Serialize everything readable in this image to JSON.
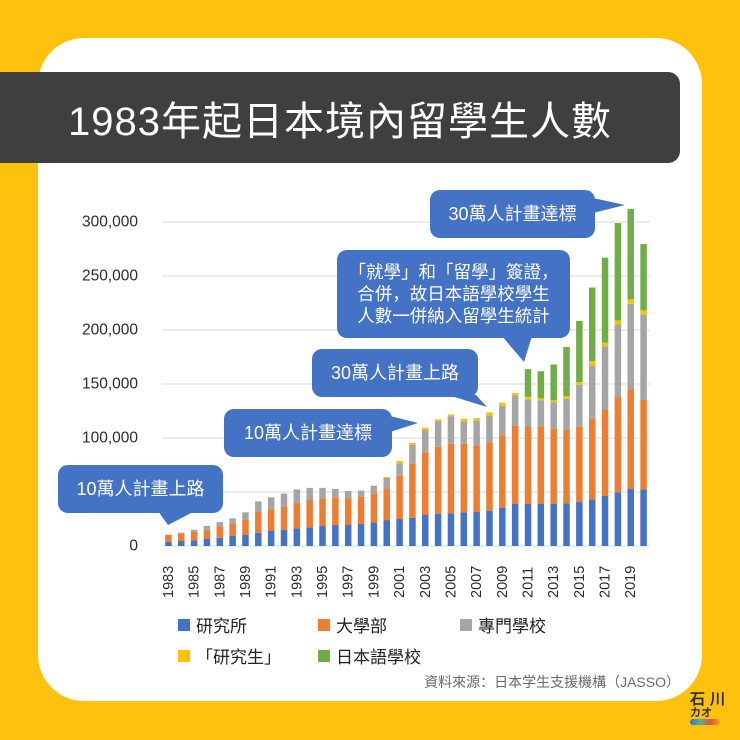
{
  "title": "1983年起日本境內留學生人數",
  "annotations": {
    "plan10_start": "10萬人計畫上路",
    "plan10_reached": "10萬人計畫達標",
    "plan30_start": "30萬人計畫上路",
    "visa_merge": [
      "「就學」和「留學」簽證，",
      "合併，故日本語學校學生",
      "人數一併納入留學生統計"
    ],
    "plan30_reached": "30萬人計畫達標"
  },
  "legend": [
    {
      "label": "研究所",
      "color": "#4472C4"
    },
    {
      "label": "大學部",
      "color": "#ED7D31"
    },
    {
      "label": "專門學校",
      "color": "#A5A5A5"
    },
    {
      "label": "「研究生」",
      "color": "#FFC000"
    },
    {
      "label": "日本語學校",
      "color": "#70AD47"
    }
  ],
  "source": "資料來源：日本学生支援機構（JASSO）",
  "logo": {
    "top": "石",
    "right": "川",
    "bottom": "カオ"
  },
  "chart_data": {
    "type": "bar",
    "stacked": true,
    "title": "1983年起日本境內留學生人數",
    "xlabel": "",
    "ylabel": "",
    "ylim": [
      0,
      300000
    ],
    "grid": true,
    "legend_position": "bottom",
    "categories": [
      "1983",
      "1984",
      "1985",
      "1986",
      "1987",
      "1988",
      "1989",
      "1990",
      "1991",
      "1992",
      "1993",
      "1994",
      "1995",
      "1996",
      "1997",
      "1998",
      "1999",
      "2000",
      "2001",
      "2002",
      "2003",
      "2004",
      "2005",
      "2006",
      "2007",
      "2008",
      "2009",
      "2010",
      "2011",
      "2012",
      "2013",
      "2014",
      "2015",
      "2016",
      "2017",
      "2018",
      "2019",
      "2020"
    ],
    "xtick_labels": [
      "1983",
      "1985",
      "1987",
      "1989",
      "1991",
      "1993",
      "1995",
      "1997",
      "1999",
      "2001",
      "2003",
      "2005",
      "2007",
      "2009",
      "2011",
      "2013",
      "2015",
      "2017",
      "2019"
    ],
    "yticks": [
      {
        "value": 0,
        "label": "0"
      },
      {
        "value": 50000,
        "label": ""
      },
      {
        "value": 100000,
        "label": "100,000"
      },
      {
        "value": 150000,
        "label": "150,000"
      },
      {
        "value": 200000,
        "label": "200,000"
      },
      {
        "value": 250000,
        "label": "250,000"
      },
      {
        "value": 300000,
        "label": "300,000"
      }
    ],
    "series": [
      {
        "name": "研究所",
        "color": "#4472C4",
        "values": [
          3800,
          4600,
          5200,
          6500,
          7700,
          9300,
          10500,
          12300,
          13900,
          14800,
          16400,
          17300,
          18500,
          19400,
          19400,
          20400,
          21900,
          24000,
          25000,
          26200,
          28700,
          29900,
          30300,
          31200,
          31800,
          32700,
          35500,
          39200,
          39200,
          39200,
          39200,
          39500,
          40700,
          43200,
          46300,
          49700,
          52800,
          52500
        ]
      },
      {
        "name": "大學部",
        "color": "#ED7D31",
        "values": [
          6600,
          6800,
          7800,
          8000,
          10500,
          11100,
          13600,
          19800,
          20000,
          21300,
          23700,
          25300,
          25600,
          25700,
          25000,
          25300,
          26900,
          29500,
          40100,
          50000,
          58000,
          62000,
          64400,
          63500,
          61400,
          63300,
          67000,
          72200,
          71000,
          71600,
          69400,
          67900,
          69800,
          74700,
          79600,
          88200,
          92500,
          83000
        ]
      },
      {
        "name": "專門學校",
        "color": "#A5A5A5",
        "values": [
          0,
          1000,
          2000,
          4100,
          3900,
          5200,
          7100,
          9200,
          11200,
          12500,
          12300,
          11200,
          9700,
          7800,
          6600,
          5600,
          7000,
          9500,
          11500,
          17300,
          20700,
          23800,
          25400,
          20700,
          22800,
          25000,
          27400,
          28100,
          25600,
          24100,
          24400,
          29000,
          38900,
          49400,
          59000,
          67300,
          79000,
          79000
        ]
      },
      {
        "name": "「研究生」",
        "color": "#FFC000",
        "values": [
          0,
          0,
          0,
          0,
          0,
          0,
          0,
          0,
          0,
          0,
          0,
          0,
          0,
          0,
          0,
          0,
          0,
          1000,
          2200,
          2000,
          2100,
          1600,
          1700,
          2500,
          2500,
          2800,
          2800,
          2300,
          2300,
          1800,
          1900,
          2200,
          2400,
          3700,
          3300,
          3700,
          4100,
          3700
        ]
      },
      {
        "name": "日本語學校",
        "color": "#70AD47",
        "values": [
          0,
          0,
          0,
          0,
          0,
          0,
          0,
          0,
          0,
          0,
          0,
          0,
          0,
          0,
          0,
          0,
          0,
          0,
          0,
          0,
          0,
          0,
          0,
          0,
          0,
          0,
          0,
          0,
          25600,
          25100,
          33200,
          45600,
          56600,
          68300,
          78800,
          90100,
          83800,
          61400
        ]
      }
    ],
    "totals_approx": [
      10400,
      12400,
      15000,
      18600,
      22100,
      25600,
      31200,
      41300,
      45100,
      48600,
      52400,
      53800,
      53800,
      52900,
      51000,
      51300,
      55800,
      64000,
      78800,
      95500,
      109500,
      117300,
      121800,
      117900,
      118500,
      123800,
      132700,
      141800,
      163700,
      161800,
      168100,
      184200,
      208400,
      239300,
      267000,
      299000,
      312200,
      279600
    ],
    "annotations": [
      {
        "text": "10萬人計畫上路",
        "year": "1983"
      },
      {
        "text": "10萬人計畫達標",
        "year": "2003"
      },
      {
        "text": "30萬人計畫上路",
        "year": "2008"
      },
      {
        "text": "「就學」和「留學」簽證，合併，故日本語學校學生人數一併納入留學生統計",
        "year": "2011"
      },
      {
        "text": "30萬人計畫達標",
        "year": "2019"
      }
    ]
  }
}
